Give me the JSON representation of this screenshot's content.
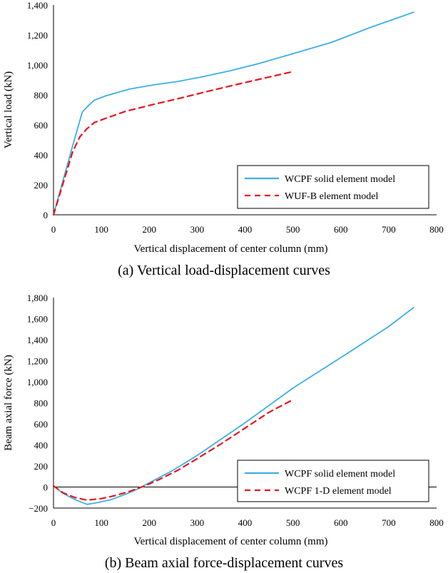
{
  "chart_data": [
    {
      "type": "line",
      "caption": "(a) Vertical load-displacement curves",
      "xlabel": "Vertical displacement of center column (mm)",
      "ylabel": "Vertical load (kN)",
      "xlim": [
        0,
        800
      ],
      "ylim": [
        0,
        1400
      ],
      "xticks": [
        "0",
        "100",
        "200",
        "300",
        "400",
        "500",
        "600",
        "700",
        "800"
      ],
      "yticks": [
        "0",
        "200",
        "400",
        "600",
        "800",
        "1,000",
        "1,200",
        "1,400"
      ],
      "legend_position": "bottom-right",
      "grid": false,
      "series": [
        {
          "name": "WCPF solid element model",
          "color": "#3bb0e6",
          "style": "solid",
          "x": [
            0,
            20,
            40,
            60,
            70,
            85,
            110,
            160,
            210,
            260,
            310,
            370,
            430,
            500,
            580,
            660,
            752
          ],
          "y": [
            0,
            230,
            460,
            685,
            720,
            765,
            795,
            840,
            867,
            890,
            920,
            962,
            1010,
            1075,
            1150,
            1248,
            1352
          ]
        },
        {
          "name": "WUF-B element model",
          "color": "#e8141c",
          "style": "dashed",
          "x": [
            0,
            20,
            40,
            55,
            70,
            85,
            110,
            150,
            200,
            260,
            320,
            380,
            440,
            500
          ],
          "y": [
            0,
            210,
            420,
            520,
            575,
            615,
            645,
            690,
            730,
            775,
            822,
            868,
            912,
            955
          ]
        }
      ]
    },
    {
      "type": "line",
      "caption": "(b) Beam axial force-displacement curves",
      "xlabel": "Vertical displacement of center column (mm)",
      "ylabel": "Beam axial force (kN)",
      "xlim": [
        0,
        800
      ],
      "ylim": [
        -200,
        1800
      ],
      "xticks": [
        "0",
        "100",
        "200",
        "300",
        "400",
        "500",
        "600",
        "700",
        "800"
      ],
      "yticks": [
        "−200",
        "0",
        "200",
        "400",
        "600",
        "800",
        "1,000",
        "1,200",
        "1,400",
        "1,600",
        "1,800"
      ],
      "legend_position": "bottom-right",
      "grid": false,
      "series": [
        {
          "name": "WCPF solid element model",
          "color": "#3bb0e6",
          "style": "solid",
          "x": [
            0,
            20,
            45,
            70,
            90,
            120,
            150,
            180,
            200,
            250,
            300,
            400,
            500,
            600,
            700,
            752
          ],
          "y": [
            10,
            -60,
            -120,
            -165,
            -150,
            -120,
            -70,
            -10,
            40,
            160,
            300,
            610,
            940,
            1230,
            1525,
            1705
          ]
        },
        {
          "name": "WCPF 1-D element model",
          "color": "#e8141c",
          "style": "dashed",
          "x": [
            0,
            20,
            45,
            70,
            100,
            130,
            160,
            190,
            220,
            260,
            300,
            350,
            400,
            450,
            500
          ],
          "y": [
            10,
            -55,
            -100,
            -125,
            -110,
            -80,
            -40,
            10,
            70,
            160,
            270,
            410,
            560,
            710,
            830
          ]
        }
      ]
    }
  ]
}
